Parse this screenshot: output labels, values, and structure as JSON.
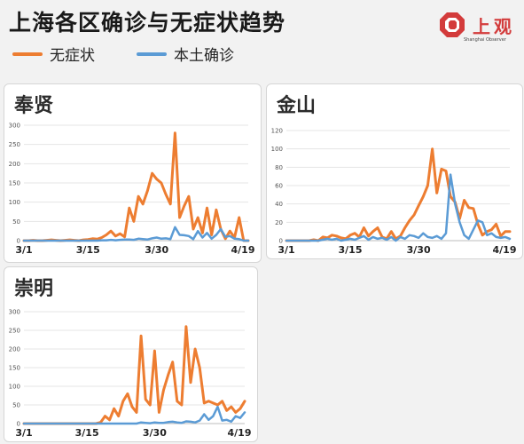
{
  "header": {
    "title": "上海各区确诊与无症状趋势",
    "legend": [
      {
        "label": "无症状",
        "color": "#ed7d31"
      },
      {
        "label": "本土确诊",
        "color": "#5b9bd5"
      }
    ],
    "logo": {
      "text": "上观",
      "sub": "Shanghai Observer",
      "color": "#d33b3b"
    }
  },
  "chart_data": [
    {
      "type": "line",
      "title": "奉贤",
      "ylim": [
        0,
        300
      ],
      "yticks": [
        0,
        50,
        100,
        150,
        200,
        250,
        300
      ],
      "xtick_labels": [
        "3/1",
        "3/15",
        "3/30",
        "4/19"
      ],
      "x": [
        "3/1",
        "3/2",
        "3/3",
        "3/4",
        "3/5",
        "3/6",
        "3/7",
        "3/8",
        "3/9",
        "3/10",
        "3/11",
        "3/12",
        "3/13",
        "3/14",
        "3/15",
        "3/16",
        "3/17",
        "3/18",
        "3/19",
        "3/20",
        "3/21",
        "3/22",
        "3/23",
        "3/24",
        "3/25",
        "3/26",
        "3/27",
        "3/28",
        "3/29",
        "3/30",
        "3/31",
        "4/1",
        "4/2",
        "4/3",
        "4/4",
        "4/5",
        "4/6",
        "4/7",
        "4/8",
        "4/9",
        "4/10",
        "4/11",
        "4/12",
        "4/13",
        "4/14",
        "4/15",
        "4/16",
        "4/17",
        "4/18",
        "4/19"
      ],
      "series": [
        {
          "name": "无症状",
          "color": "#ed7d31",
          "values": [
            0,
            0,
            1,
            0,
            0,
            1,
            2,
            1,
            0,
            1,
            2,
            1,
            0,
            2,
            3,
            5,
            4,
            8,
            15,
            25,
            12,
            18,
            10,
            85,
            50,
            115,
            95,
            130,
            175,
            160,
            150,
            120,
            95,
            280,
            60,
            90,
            115,
            30,
            60,
            20,
            85,
            15,
            80,
            30,
            5,
            25,
            8,
            60,
            0,
            0
          ]
        },
        {
          "name": "本土确诊",
          "color": "#5b9bd5",
          "values": [
            0,
            0,
            0,
            0,
            0,
            0,
            0,
            0,
            0,
            0,
            0,
            0,
            0,
            0,
            0,
            0,
            0,
            1,
            1,
            2,
            1,
            2,
            3,
            3,
            2,
            5,
            4,
            3,
            6,
            8,
            5,
            6,
            4,
            35,
            15,
            14,
            12,
            4,
            25,
            8,
            20,
            5,
            15,
            30,
            10,
            12,
            5,
            4,
            0,
            0
          ]
        }
      ]
    },
    {
      "type": "line",
      "title": "金山",
      "ylim": [
        0,
        120
      ],
      "yticks": [
        0,
        20,
        40,
        60,
        80,
        100,
        120
      ],
      "xtick_labels": [
        "3/1",
        "3/15",
        "3/30",
        "4/19"
      ],
      "x": [
        "3/1",
        "3/2",
        "3/3",
        "3/4",
        "3/5",
        "3/6",
        "3/7",
        "3/8",
        "3/9",
        "3/10",
        "3/11",
        "3/12",
        "3/13",
        "3/14",
        "3/15",
        "3/16",
        "3/17",
        "3/18",
        "3/19",
        "3/20",
        "3/21",
        "3/22",
        "3/23",
        "3/24",
        "3/25",
        "3/26",
        "3/27",
        "3/28",
        "3/29",
        "3/30",
        "3/31",
        "4/1",
        "4/2",
        "4/3",
        "4/4",
        "4/5",
        "4/6",
        "4/7",
        "4/8",
        "4/9",
        "4/10",
        "4/11",
        "4/12",
        "4/13",
        "4/14",
        "4/15",
        "4/16",
        "4/17",
        "4/18",
        "4/19"
      ],
      "series": [
        {
          "name": "无症状",
          "color": "#ed7d31",
          "values": [
            0,
            0,
            0,
            0,
            0,
            0,
            1,
            0,
            4,
            3,
            6,
            5,
            3,
            2,
            6,
            8,
            4,
            14,
            5,
            10,
            14,
            4,
            2,
            10,
            2,
            5,
            14,
            22,
            28,
            38,
            48,
            60,
            100,
            52,
            78,
            76,
            48,
            42,
            24,
            44,
            36,
            35,
            18,
            6,
            10,
            12,
            18,
            5,
            10,
            10
          ]
        },
        {
          "name": "本土确诊",
          "color": "#5b9bd5",
          "values": [
            0,
            0,
            0,
            0,
            0,
            0,
            0,
            0,
            1,
            2,
            1,
            2,
            0,
            1,
            2,
            1,
            3,
            5,
            1,
            4,
            2,
            3,
            1,
            4,
            0,
            4,
            2,
            6,
            5,
            3,
            8,
            4,
            3,
            5,
            2,
            8,
            72,
            40,
            20,
            6,
            2,
            12,
            22,
            20,
            6,
            8,
            4,
            3,
            4,
            2
          ]
        }
      ]
    },
    {
      "type": "line",
      "title": "崇明",
      "ylim": [
        0,
        300
      ],
      "yticks": [
        0,
        50,
        100,
        150,
        200,
        250,
        300
      ],
      "xtick_labels": [
        "3/1",
        "3/15",
        "3/30",
        "4/19"
      ],
      "x": [
        "3/1",
        "3/2",
        "3/3",
        "3/4",
        "3/5",
        "3/6",
        "3/7",
        "3/8",
        "3/9",
        "3/10",
        "3/11",
        "3/12",
        "3/13",
        "3/14",
        "3/15",
        "3/16",
        "3/17",
        "3/18",
        "3/19",
        "3/20",
        "3/21",
        "3/22",
        "3/23",
        "3/24",
        "3/25",
        "3/26",
        "3/27",
        "3/28",
        "3/29",
        "3/30",
        "3/31",
        "4/1",
        "4/2",
        "4/3",
        "4/4",
        "4/5",
        "4/6",
        "4/7",
        "4/8",
        "4/9",
        "4/10",
        "4/11",
        "4/12",
        "4/13",
        "4/14",
        "4/15",
        "4/16",
        "4/17",
        "4/18",
        "4/19"
      ],
      "series": [
        {
          "name": "无症状",
          "color": "#ed7d31",
          "values": [
            0,
            0,
            0,
            0,
            0,
            0,
            0,
            0,
            0,
            0,
            0,
            0,
            0,
            0,
            0,
            0,
            0,
            3,
            20,
            10,
            40,
            20,
            60,
            80,
            45,
            30,
            235,
            65,
            50,
            195,
            30,
            90,
            130,
            165,
            60,
            50,
            260,
            110,
            200,
            150,
            55,
            60,
            55,
            50,
            60,
            35,
            45,
            30,
            40,
            60
          ]
        },
        {
          "name": "本土确诊",
          "color": "#5b9bd5",
          "values": [
            0,
            0,
            0,
            0,
            0,
            0,
            0,
            0,
            0,
            0,
            0,
            0,
            0,
            0,
            0,
            0,
            0,
            0,
            0,
            0,
            0,
            0,
            0,
            0,
            0,
            0,
            3,
            2,
            1,
            3,
            2,
            2,
            4,
            5,
            3,
            2,
            6,
            5,
            3,
            8,
            25,
            10,
            20,
            45,
            8,
            10,
            5,
            20,
            15,
            30
          ]
        }
      ]
    }
  ]
}
